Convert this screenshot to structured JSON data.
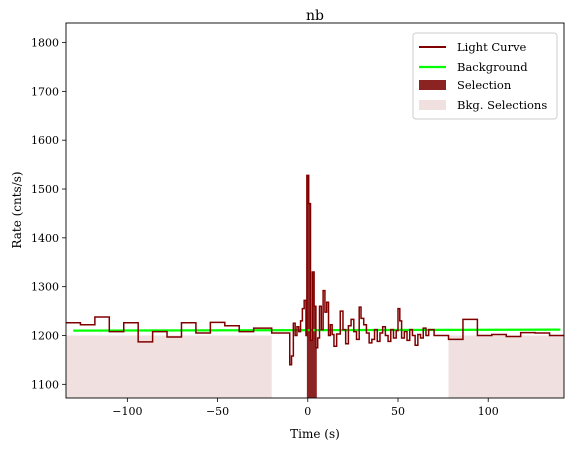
{
  "chart_data": {
    "type": "line",
    "title": "nb",
    "xlabel": "Time (s)",
    "ylabel": "Rate (cnts/s)",
    "xlim": [
      -134,
      142
    ],
    "ylim": [
      1072,
      1840
    ],
    "xticks": [
      -100,
      -50,
      0,
      50,
      100
    ],
    "xtick_labels": [
      "−100",
      "−50",
      "0",
      "50",
      "100"
    ],
    "yticks": [
      1100,
      1200,
      1300,
      1400,
      1500,
      1600,
      1700,
      1800
    ],
    "ytick_labels": [
      "1100",
      "1200",
      "1300",
      "1400",
      "1500",
      "1600",
      "1700",
      "1800"
    ],
    "grid": false,
    "legend_position": "top-right",
    "legend": [
      {
        "label": "Light Curve",
        "kind": "line",
        "color": "#800000"
      },
      {
        "label": "Background",
        "kind": "line",
        "color": "#00ff00"
      },
      {
        "label": "Selection",
        "kind": "patch",
        "color": "#8b2323"
      },
      {
        "label": "Bkg. Selections",
        "kind": "patch",
        "color": "#f0e0e0"
      }
    ],
    "colors": {
      "light_curve": "#800000",
      "background": "#00ff00",
      "selection": "#8b2323",
      "bkg_selection": "#f0e0e0"
    },
    "bkg_selections": [
      [
        -134,
        -20
      ],
      [
        78,
        142
      ]
    ],
    "selection": [
      -0.5,
      5
    ],
    "selection_steps": [
      [
        -0.5,
        1528
      ],
      [
        0.5,
        1470
      ],
      [
        1.5,
        1190
      ],
      [
        2.5,
        1330
      ],
      [
        3.5,
        1260
      ],
      [
        4.5,
        1175
      ],
      [
        5,
        1175
      ]
    ],
    "background": {
      "x": [
        -130,
        140
      ],
      "y": [
        1210,
        1212
      ]
    },
    "light_curve_steps": [
      [
        -134,
        1226
      ],
      [
        -126,
        1222
      ],
      [
        -118,
        1238
      ],
      [
        -110,
        1208
      ],
      [
        -102,
        1226
      ],
      [
        -94,
        1187
      ],
      [
        -86,
        1208
      ],
      [
        -78,
        1197
      ],
      [
        -70,
        1226
      ],
      [
        -62,
        1205
      ],
      [
        -54,
        1227
      ],
      [
        -46,
        1220
      ],
      [
        -38,
        1208
      ],
      [
        -30,
        1215
      ],
      [
        -20,
        1205
      ],
      [
        -10,
        1140
      ],
      [
        -9,
        1158
      ],
      [
        -8,
        1225
      ],
      [
        -7,
        1200
      ],
      [
        -6,
        1218
      ],
      [
        -5,
        1208
      ],
      [
        -4,
        1230
      ],
      [
        -3,
        1255
      ],
      [
        -2,
        1272
      ],
      [
        -1,
        1200
      ],
      [
        -0.5,
        1528
      ],
      [
        0.5,
        1470
      ],
      [
        1.5,
        1190
      ],
      [
        2.5,
        1330
      ],
      [
        3.5,
        1260
      ],
      [
        4.5,
        1175
      ],
      [
        5.5,
        1195
      ],
      [
        6.5,
        1260
      ],
      [
        7.5,
        1212
      ],
      [
        8.5,
        1292
      ],
      [
        9.5,
        1248
      ],
      [
        10.5,
        1268
      ],
      [
        11.5,
        1200
      ],
      [
        12.5,
        1222
      ],
      [
        13.5,
        1202
      ],
      [
        14.5,
        1178
      ],
      [
        16,
        1203
      ],
      [
        18,
        1250
      ],
      [
        19.5,
        1212
      ],
      [
        21,
        1183
      ],
      [
        22.5,
        1220
      ],
      [
        24,
        1233
      ],
      [
        25.5,
        1208
      ],
      [
        27,
        1192
      ],
      [
        28.5,
        1258
      ],
      [
        29.5,
        1235
      ],
      [
        31,
        1222
      ],
      [
        32.5,
        1205
      ],
      [
        34,
        1185
      ],
      [
        35.5,
        1192
      ],
      [
        37,
        1212
      ],
      [
        38.5,
        1188
      ],
      [
        40,
        1205
      ],
      [
        41.5,
        1218
      ],
      [
        43,
        1200
      ],
      [
        44.5,
        1188
      ],
      [
        46,
        1212
      ],
      [
        47.5,
        1195
      ],
      [
        49,
        1210
      ],
      [
        50,
        1255
      ],
      [
        51,
        1230
      ],
      [
        52,
        1195
      ],
      [
        53.5,
        1208
      ],
      [
        55,
        1190
      ],
      [
        56.5,
        1212
      ],
      [
        58,
        1200
      ],
      [
        59.5,
        1180
      ],
      [
        61,
        1202
      ],
      [
        62.5,
        1195
      ],
      [
        64,
        1215
      ],
      [
        65.5,
        1200
      ],
      [
        67,
        1212
      ],
      [
        70,
        1200
      ],
      [
        78,
        1192
      ],
      [
        86,
        1233
      ],
      [
        94,
        1200
      ],
      [
        102,
        1202
      ],
      [
        110,
        1198
      ],
      [
        118,
        1206
      ],
      [
        126,
        1205
      ],
      [
        134,
        1200
      ],
      [
        142,
        1200
      ]
    ]
  }
}
